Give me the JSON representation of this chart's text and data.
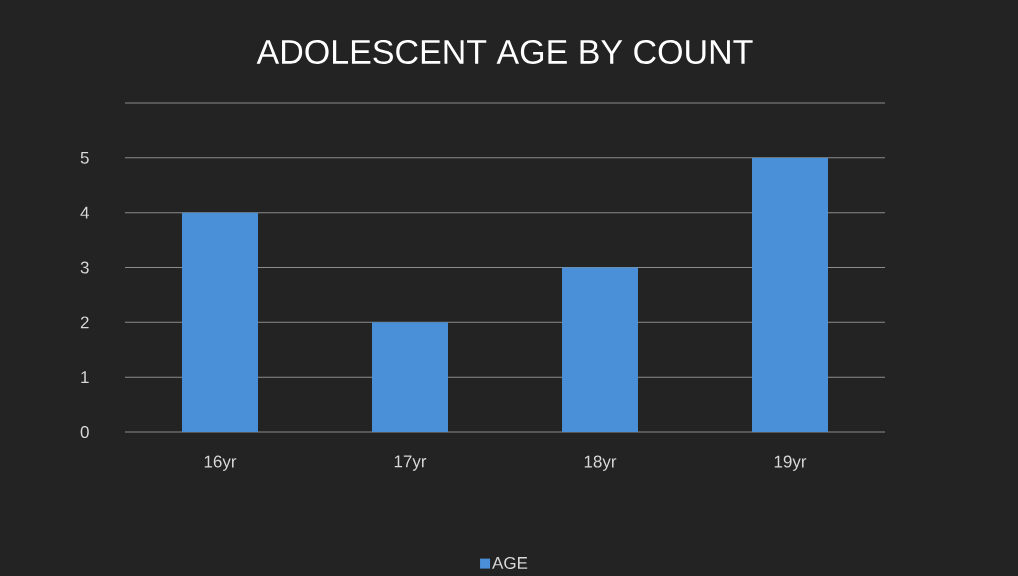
{
  "chart_data": {
    "type": "bar",
    "title": "ADOLESCENT AGE BY COUNT",
    "categories": [
      "16yr",
      "17yr",
      "18yr",
      "19yr"
    ],
    "series": [
      {
        "name": "AGE",
        "color": "#4a90d9",
        "values": [
          4,
          2,
          3,
          5
        ]
      }
    ],
    "ylim": [
      0,
      6
    ],
    "yticks": [
      0,
      1,
      2,
      3,
      4,
      5,
      {
        "value": 6,
        "label": null
      }
    ],
    "grid": "y",
    "legend": "bottom"
  }
}
